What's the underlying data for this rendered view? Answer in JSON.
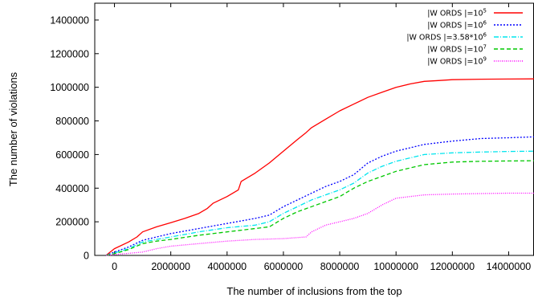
{
  "chart_data": {
    "type": "line",
    "xlabel": "The number of inclusions from the top",
    "ylabel": "The number of violations",
    "xlim": [
      -700000,
      14900000
    ],
    "ylim": [
      0,
      1500000
    ],
    "xticks": [
      0,
      2000000,
      4000000,
      6000000,
      8000000,
      10000000,
      12000000,
      14000000
    ],
    "yticks": [
      0,
      200000,
      400000,
      600000,
      800000,
      1000000,
      1200000,
      1400000
    ],
    "grid": false,
    "legend_position": "top-right",
    "series": [
      {
        "name": "|WORDS|=10^5",
        "legend_base": "|W ORDS |=10",
        "legend_exp": "5",
        "color": "#ff0000",
        "dash": "",
        "x": [
          -300000,
          0,
          500000,
          800000,
          1000000,
          1500000,
          2000000,
          2500000,
          3000000,
          3300000,
          3500000,
          4000000,
          4400000,
          4500000,
          5000000,
          5500000,
          6000000,
          6500000,
          6800000,
          7000000,
          7500000,
          8000000,
          8500000,
          9000000,
          9500000,
          10000000,
          10500000,
          11000000,
          11500000,
          12000000,
          13000000,
          14000000,
          14900000
        ],
        "y": [
          0,
          40000,
          80000,
          110000,
          140000,
          170000,
          195000,
          220000,
          250000,
          280000,
          310000,
          350000,
          390000,
          440000,
          490000,
          550000,
          620000,
          690000,
          730000,
          760000,
          810000,
          860000,
          900000,
          940000,
          970000,
          1000000,
          1020000,
          1035000,
          1040000,
          1045000,
          1048000,
          1049000,
          1050000
        ]
      },
      {
        "name": "|WORDS|=10^6",
        "legend_base": "|W ORDS |=10",
        "legend_exp": "6",
        "color": "#0000ff",
        "dash": "2,2",
        "x": [
          -300000,
          0,
          500000,
          1000000,
          1500000,
          2000000,
          3000000,
          4000000,
          5000000,
          5500000,
          6000000,
          6500000,
          7000000,
          7500000,
          8000000,
          8500000,
          9000000,
          9500000,
          10000000,
          10500000,
          11000000,
          12000000,
          13000000,
          14000000,
          14900000
        ],
        "y": [
          0,
          20000,
          50000,
          90000,
          110000,
          130000,
          160000,
          190000,
          220000,
          240000,
          290000,
          330000,
          370000,
          410000,
          440000,
          480000,
          550000,
          590000,
          620000,
          640000,
          660000,
          680000,
          695000,
          700000,
          705000
        ]
      },
      {
        "name": "|WORDS|=3.58*10^6",
        "legend_base": "|W ORDS |=3.58*10",
        "legend_exp": "6",
        "color": "#00e5ee",
        "dash": "6,2,1,2",
        "x": [
          -300000,
          0,
          500000,
          1000000,
          1500000,
          2000000,
          3000000,
          4000000,
          5000000,
          5500000,
          6000000,
          6500000,
          7000000,
          7500000,
          8000000,
          8500000,
          9000000,
          9500000,
          10000000,
          10500000,
          11000000,
          12000000,
          13000000,
          14000000,
          14900000
        ],
        "y": [
          0,
          15000,
          40000,
          80000,
          95000,
          110000,
          140000,
          165000,
          180000,
          200000,
          250000,
          290000,
          330000,
          360000,
          390000,
          430000,
          490000,
          530000,
          560000,
          580000,
          600000,
          610000,
          615000,
          618000,
          620000
        ]
      },
      {
        "name": "|WORDS|=10^7",
        "legend_base": "|W ORDS |=10",
        "legend_exp": "7",
        "color": "#00c800",
        "dash": "5,3",
        "x": [
          -300000,
          0,
          500000,
          1000000,
          1500000,
          2000000,
          3000000,
          4000000,
          5000000,
          5500000,
          6000000,
          6500000,
          7000000,
          7500000,
          8000000,
          8500000,
          9000000,
          9500000,
          10000000,
          10500000,
          11000000,
          12000000,
          13000000,
          14000000,
          14900000
        ],
        "y": [
          0,
          10000,
          35000,
          70000,
          85000,
          95000,
          120000,
          140000,
          160000,
          170000,
          220000,
          260000,
          290000,
          320000,
          350000,
          400000,
          440000,
          470000,
          500000,
          520000,
          540000,
          555000,
          560000,
          562000,
          563000
        ]
      },
      {
        "name": "|WORDS|=10^9",
        "legend_base": "|W ORDS |=10",
        "legend_exp": "9",
        "color": "#ff00ff",
        "dash": "1,1.5",
        "x": [
          -300000,
          0,
          1000000,
          1500000,
          2000000,
          3000000,
          4000000,
          5000000,
          6000000,
          6800000,
          7000000,
          7500000,
          8000000,
          8500000,
          9000000,
          9500000,
          10000000,
          10500000,
          11000000,
          12000000,
          13000000,
          14000000,
          14900000
        ],
        "y": [
          0,
          5000,
          20000,
          40000,
          55000,
          70000,
          85000,
          95000,
          100000,
          110000,
          140000,
          180000,
          200000,
          220000,
          250000,
          300000,
          340000,
          350000,
          360000,
          365000,
          368000,
          370000,
          370000
        ]
      }
    ]
  }
}
